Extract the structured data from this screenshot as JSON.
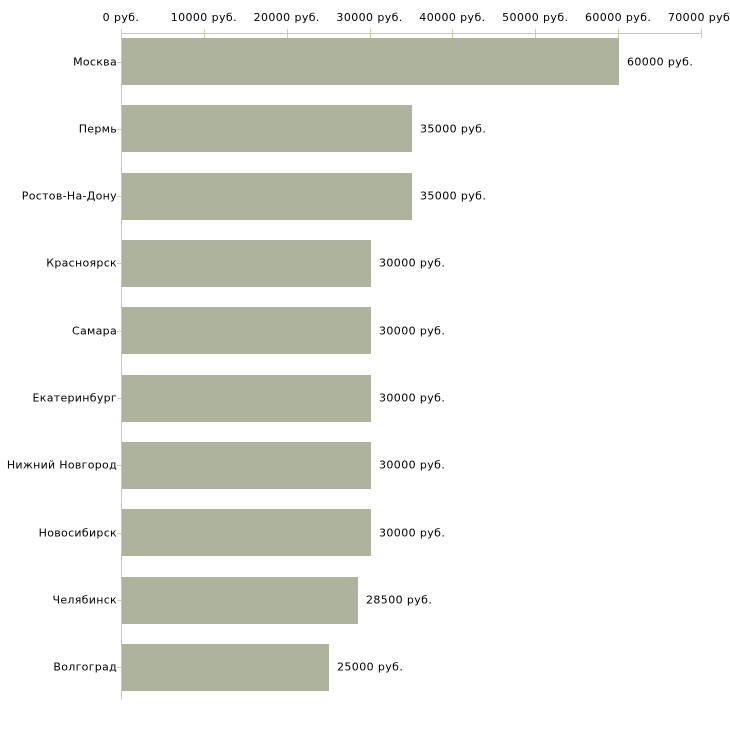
{
  "chart_data": {
    "type": "bar",
    "orientation": "horizontal",
    "title": "",
    "xlabel": "",
    "ylabel": "",
    "legend": "none",
    "grid": "off",
    "categories": [
      "Москва",
      "Пермь",
      "Ростов-На-Дону",
      "Красноярск",
      "Самара",
      "Екатеринбург",
      "Нижний Новгород",
      "Новосибирск",
      "Челябинск",
      "Волгоград"
    ],
    "values": [
      60000,
      35000,
      35000,
      30000,
      30000,
      30000,
      30000,
      30000,
      28500,
      25000
    ],
    "value_labels": [
      "60000 руб.",
      "35000 руб.",
      "35000 руб.",
      "30000 руб.",
      "30000 руб.",
      "30000 руб.",
      "30000 руб.",
      "30000 руб.",
      "28500 руб.",
      "25000 руб."
    ],
    "x_ticks": [
      0,
      10000,
      20000,
      30000,
      40000,
      50000,
      60000,
      70000
    ],
    "x_tick_labels": [
      "0 руб.",
      "10000 руб.",
      "20000 руб.",
      "30000 руб.",
      "40000 руб.",
      "50000 руб.",
      "60000 руб.",
      "70000 руб."
    ],
    "xlim": [
      0,
      70000
    ],
    "colors": {
      "bar_fill": "#adb39c",
      "axis_line": "#c6c6c6",
      "tick_mark": "#ccd1a3",
      "text": "#000000",
      "background": "#ffffff"
    }
  }
}
